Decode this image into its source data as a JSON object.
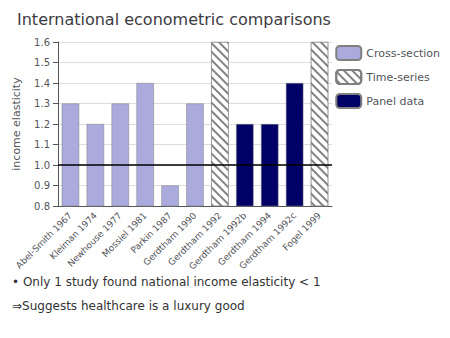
{
  "chart_data": {
    "type": "bar",
    "title": "International econometric comparisons",
    "y_label": "income elasticity",
    "categories": [
      "Abel-Smith 1967",
      "Kleiman 1974",
      "Newhouse 1977",
      "Mossiel 1981",
      "Parkin 1987",
      "Gerdtham 1990",
      "Gerdtham 1992",
      "Gerdtham 1992b",
      "Gerdtham 1994",
      "Gerdtham 1992c",
      "Fogel 1999"
    ],
    "series": [
      {
        "name": "Cross-section",
        "color": "#aaaadd",
        "values": [
          1.3,
          1.2,
          1.3,
          1.4,
          0.9,
          1.3,
          null,
          null,
          null,
          null,
          null
        ]
      },
      {
        "name": "Time-series",
        "color": "#ffffff",
        "values": [
          null,
          null,
          null,
          null,
          null,
          null,
          1.6,
          null,
          null,
          null,
          1.6
        ]
      },
      {
        "name": "Panel data",
        "color": "#000066",
        "values": [
          null,
          null,
          null,
          null,
          null,
          null,
          null,
          1.2,
          1.2,
          1.4,
          null
        ]
      }
    ],
    "reference_line": 1.0,
    "ylim": [
      0.8,
      1.6
    ],
    "yticks": [
      0.8,
      0.9,
      {
        "value": 1.0,
        "label": "1.0"
      },
      1.1,
      1.2,
      1.3,
      1.4,
      1.5,
      1.6
    ],
    "grid": true,
    "legend": "right",
    "annotations": [
      "• Only 1 study found national income elasticity < 1",
      "⇒Suggests healthcare is a luxury good"
    ]
  }
}
